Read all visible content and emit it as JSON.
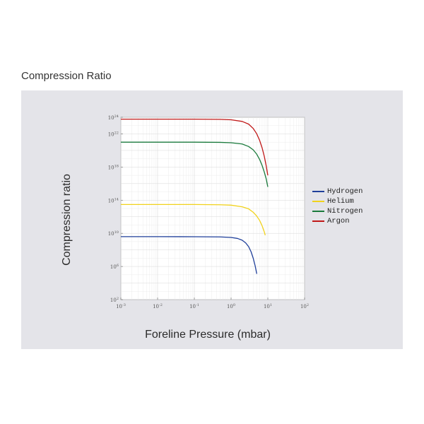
{
  "page": {
    "title": "Compression Ratio"
  },
  "chart_data": {
    "type": "line",
    "title": "",
    "xlabel": "Foreline Pressure (mbar)",
    "ylabel": "Compression ratio",
    "xscale": "log",
    "yscale": "log",
    "xlim": [
      0.001,
      100
    ],
    "ylim": [
      100,
      1e+24
    ],
    "grid": true,
    "legend_position": "right",
    "x_tick_labels": [
      {
        "value": 0.001,
        "base": "10",
        "exp": "-3"
      },
      {
        "value": 0.01,
        "base": "10",
        "exp": "-2"
      },
      {
        "value": 0.1,
        "base": "10",
        "exp": "-1"
      },
      {
        "value": 1,
        "base": "10",
        "exp": "0"
      },
      {
        "value": 10,
        "base": "10",
        "exp": "1"
      },
      {
        "value": 100,
        "base": "10",
        "exp": "2"
      }
    ],
    "y_tick_labels": [
      {
        "value": 100,
        "base": "10",
        "exp": "2"
      },
      {
        "value": 1000000.0,
        "base": "10",
        "exp": "6"
      },
      {
        "value": 10000000000.0,
        "base": "10",
        "exp": "10"
      },
      {
        "value": 100000000000000.0,
        "base": "10",
        "exp": "14"
      },
      {
        "value": 1e+18,
        "base": "10",
        "exp": "18"
      },
      {
        "value": 1e+22,
        "base": "10",
        "exp": "22"
      },
      {
        "value": 1e+24,
        "base": "10",
        "exp": "24"
      }
    ],
    "series": [
      {
        "name": "Hydrogen",
        "color": "#1f3f9a",
        "x": [
          0.001,
          0.01,
          0.1,
          0.5,
          1,
          1.5,
          2,
          2.5,
          3,
          3.5,
          4,
          4.5,
          5
        ],
        "y": [
          4000000000.0,
          4000000000.0,
          3900000000.0,
          3700000000.0,
          3200000000.0,
          2400000000.0,
          1500000000.0,
          700000000.0,
          250000000.0,
          60000000.0,
          10000000.0,
          1300000.0,
          130000.0
        ]
      },
      {
        "name": "Helium",
        "color": "#f1d21c",
        "x": [
          0.001,
          0.01,
          0.1,
          0.5,
          1,
          2,
          3,
          4,
          5,
          6,
          7,
          8,
          8.5
        ],
        "y": [
          30000000000000.0,
          30000000000000.0,
          30000000000000.0,
          28000000000000.0,
          25000000000000.0,
          16000000000000.0,
          9000000000000.0,
          3500000000000.0,
          1200000000000.0,
          350000000000.0,
          80000000000.0,
          15000000000.0,
          6000000000.0
        ]
      },
      {
        "name": "Nitrogen",
        "color": "#1a7a3c",
        "x": [
          0.001,
          0.01,
          0.1,
          0.5,
          1,
          2,
          3,
          4,
          5,
          6,
          7,
          8,
          9,
          10
        ],
        "y": [
          1e+21,
          1e+21,
          1e+21,
          9.5e+20,
          8.5e+20,
          6e+20,
          3e+20,
          1.2e+20,
          3.5e+19,
          8e+18,
          1.5e+18,
          2.5e+17,
          4e+16,
          4000000000000000.0
        ]
      },
      {
        "name": "Argon",
        "color": "#c01818",
        "x": [
          0.001,
          0.01,
          0.1,
          0.5,
          1,
          2,
          3,
          4,
          5,
          6,
          7,
          8,
          9,
          10
        ],
        "y": [
          6e+23,
          6e+23,
          6e+23,
          5.7e+23,
          5e+23,
          3.2e+23,
          1.5e+23,
          4.5e+22,
          1e+22,
          1.6e+21,
          2e+20,
          2e+19,
          1.5e+18,
          1e+17
        ]
      }
    ]
  }
}
